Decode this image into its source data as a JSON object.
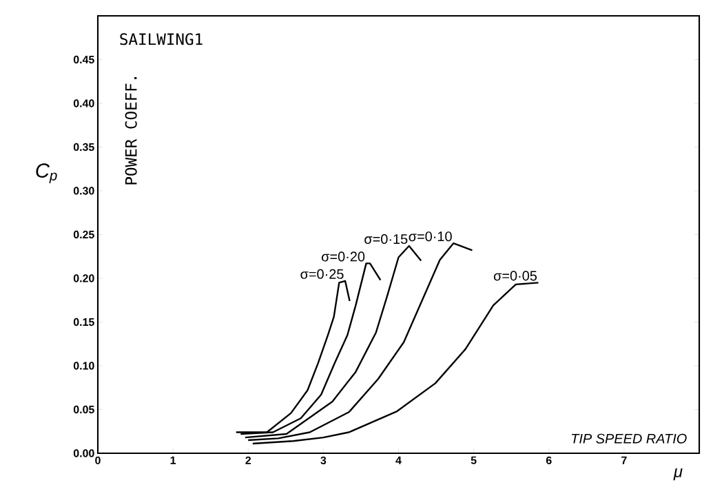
{
  "chart_data": {
    "type": "line",
    "title": "SAILWING1",
    "xlabel": "μ",
    "ylabel": "C$_{p}$",
    "xlim": [
      0,
      8
    ],
    "ylim": [
      0,
      0.5
    ],
    "xticks": [
      0,
      1,
      2,
      3,
      4,
      5,
      6,
      7
    ],
    "yticks": [
      {
        "value": 0,
        "label": "0.00"
      },
      {
        "value": 0.05,
        "label": "0.05"
      },
      {
        "value": 0.1,
        "label": "0.10"
      },
      {
        "value": 0.15,
        "label": "0.15"
      },
      {
        "value": 0.2,
        "label": "0.20"
      },
      {
        "value": 0.25,
        "label": "0.25"
      },
      {
        "value": 0.3,
        "label": "0.30"
      },
      {
        "value": 0.35,
        "label": "0.35"
      },
      {
        "value": 0.4,
        "label": "0.40"
      },
      {
        "value": 0.45,
        "label": "0.45"
      }
    ],
    "grid": false,
    "legend": false,
    "marker": "none",
    "line_style": "solid",
    "series": [
      {
        "name": "σ=0·25",
        "color": "#000000",
        "x": [
          1.84,
          2.25,
          2.57,
          2.79,
          2.93,
          3.06,
          3.14,
          3.21,
          3.29,
          3.35
        ],
        "values": [
          0.024,
          0.024,
          0.046,
          0.072,
          0.103,
          0.135,
          0.156,
          0.195,
          0.197,
          0.174
        ]
      },
      {
        "name": "σ=0·20",
        "color": "#000000",
        "x": [
          1.9,
          2.33,
          2.7,
          2.97,
          3.15,
          3.32,
          3.43,
          3.57,
          3.62,
          3.76
        ],
        "values": [
          0.022,
          0.024,
          0.04,
          0.067,
          0.103,
          0.135,
          0.169,
          0.217,
          0.217,
          0.198
        ]
      },
      {
        "name": "σ=0·15",
        "color": "#000000",
        "x": [
          1.96,
          2.51,
          3.12,
          3.43,
          3.7,
          3.85,
          4.0,
          4.14,
          4.3
        ],
        "values": [
          0.018,
          0.022,
          0.059,
          0.093,
          0.138,
          0.18,
          0.224,
          0.237,
          0.22
        ]
      },
      {
        "name": "σ=0·10",
        "color": "#000000",
        "x": [
          2.0,
          2.4,
          2.82,
          3.34,
          3.73,
          4.07,
          4.31,
          4.55,
          4.73,
          4.98
        ],
        "values": [
          0.015,
          0.017,
          0.024,
          0.047,
          0.085,
          0.127,
          0.174,
          0.221,
          0.24,
          0.232
        ]
      },
      {
        "name": "σ=0·05",
        "color": "#000000",
        "x": [
          2.06,
          2.6,
          3.0,
          3.34,
          3.98,
          4.49,
          4.89,
          5.26,
          5.56,
          5.86
        ],
        "values": [
          0.011,
          0.014,
          0.018,
          0.024,
          0.048,
          0.08,
          0.119,
          0.169,
          0.193,
          0.195
        ]
      }
    ],
    "annotations": [
      "POWER COEFF.",
      "TIP SPEED RATIO"
    ]
  }
}
